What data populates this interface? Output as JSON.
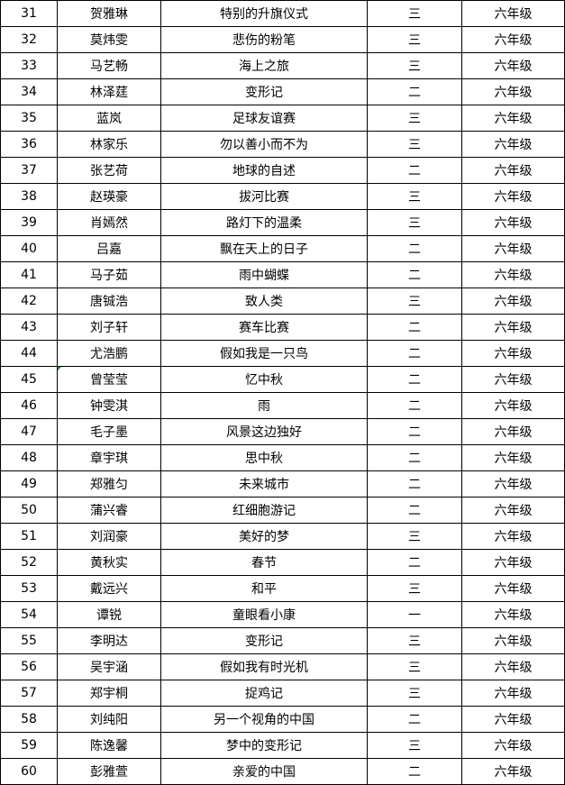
{
  "table": {
    "rows": [
      [
        "31",
        "贺雅琳",
        "特别的升旗仪式",
        "三",
        "六年级"
      ],
      [
        "32",
        "莫炜雯",
        "悲伤的粉笔",
        "三",
        "六年级"
      ],
      [
        "33",
        "马艺畅",
        "海上之旅",
        "三",
        "六年级"
      ],
      [
        "34",
        "林泽莛",
        "变形记",
        "二",
        "六年级"
      ],
      [
        "35",
        "蓝岚",
        "足球友谊赛",
        "三",
        "六年级"
      ],
      [
        "36",
        "林家乐",
        "勿以善小而不为",
        "三",
        "六年级"
      ],
      [
        "37",
        "张艺荷",
        "地球的自述",
        "二",
        "六年级"
      ],
      [
        "38",
        "赵瑛豪",
        "拔河比赛",
        "三",
        "六年级"
      ],
      [
        "39",
        "肖嫣然",
        "路灯下的温柔",
        "三",
        "六年级"
      ],
      [
        "40",
        "吕嘉",
        "飘在天上的日子",
        "二",
        "六年级"
      ],
      [
        "41",
        "马子茹",
        "雨中蝴蝶",
        "二",
        "六年级"
      ],
      [
        "42",
        "唐铖浩",
        "致人类",
        "三",
        "六年级"
      ],
      [
        "43",
        "刘子轩",
        "赛车比赛",
        "二",
        "六年级"
      ],
      [
        "44",
        "尤浩鹏",
        "假如我是一只鸟",
        "二",
        "六年级"
      ],
      [
        "45",
        "曾莹莹",
        "忆中秋",
        "二",
        "六年级"
      ],
      [
        "46",
        "钟雯淇",
        "雨",
        "二",
        "六年级"
      ],
      [
        "47",
        "毛子墨",
        "风景这边独好",
        "二",
        "六年级"
      ],
      [
        "48",
        "章宇琪",
        "思中秋",
        "二",
        "六年级"
      ],
      [
        "49",
        "郑雅匀",
        "未来城市",
        "二",
        "六年级"
      ],
      [
        "50",
        "蒲兴睿",
        "红细胞游记",
        "二",
        "六年级"
      ],
      [
        "51",
        "刘润豪",
        "美好的梦",
        "三",
        "六年级"
      ],
      [
        "52",
        "黄秋实",
        "春节",
        "二",
        "六年级"
      ],
      [
        "53",
        "戴远兴",
        "和平",
        "三",
        "六年级"
      ],
      [
        "54",
        "谭锐",
        "童眼看小康",
        "一",
        "六年级"
      ],
      [
        "55",
        "李明达",
        "变形记",
        "三",
        "六年级"
      ],
      [
        "56",
        "吴宇涵",
        "假如我有时光机",
        "三",
        "六年级"
      ],
      [
        "57",
        "郑宇桐",
        "捉鸡记",
        "三",
        "六年级"
      ],
      [
        "58",
        "刘纯阳",
        "另一个视角的中国",
        "二",
        "六年级"
      ],
      [
        "59",
        "陈逸馨",
        "梦中的变形记",
        "三",
        "六年级"
      ],
      [
        "60",
        "彭雅萱",
        "亲爱的中国",
        "二",
        "六年级"
      ]
    ]
  },
  "colors": {
    "cell_marker": "#1a8a1a"
  }
}
